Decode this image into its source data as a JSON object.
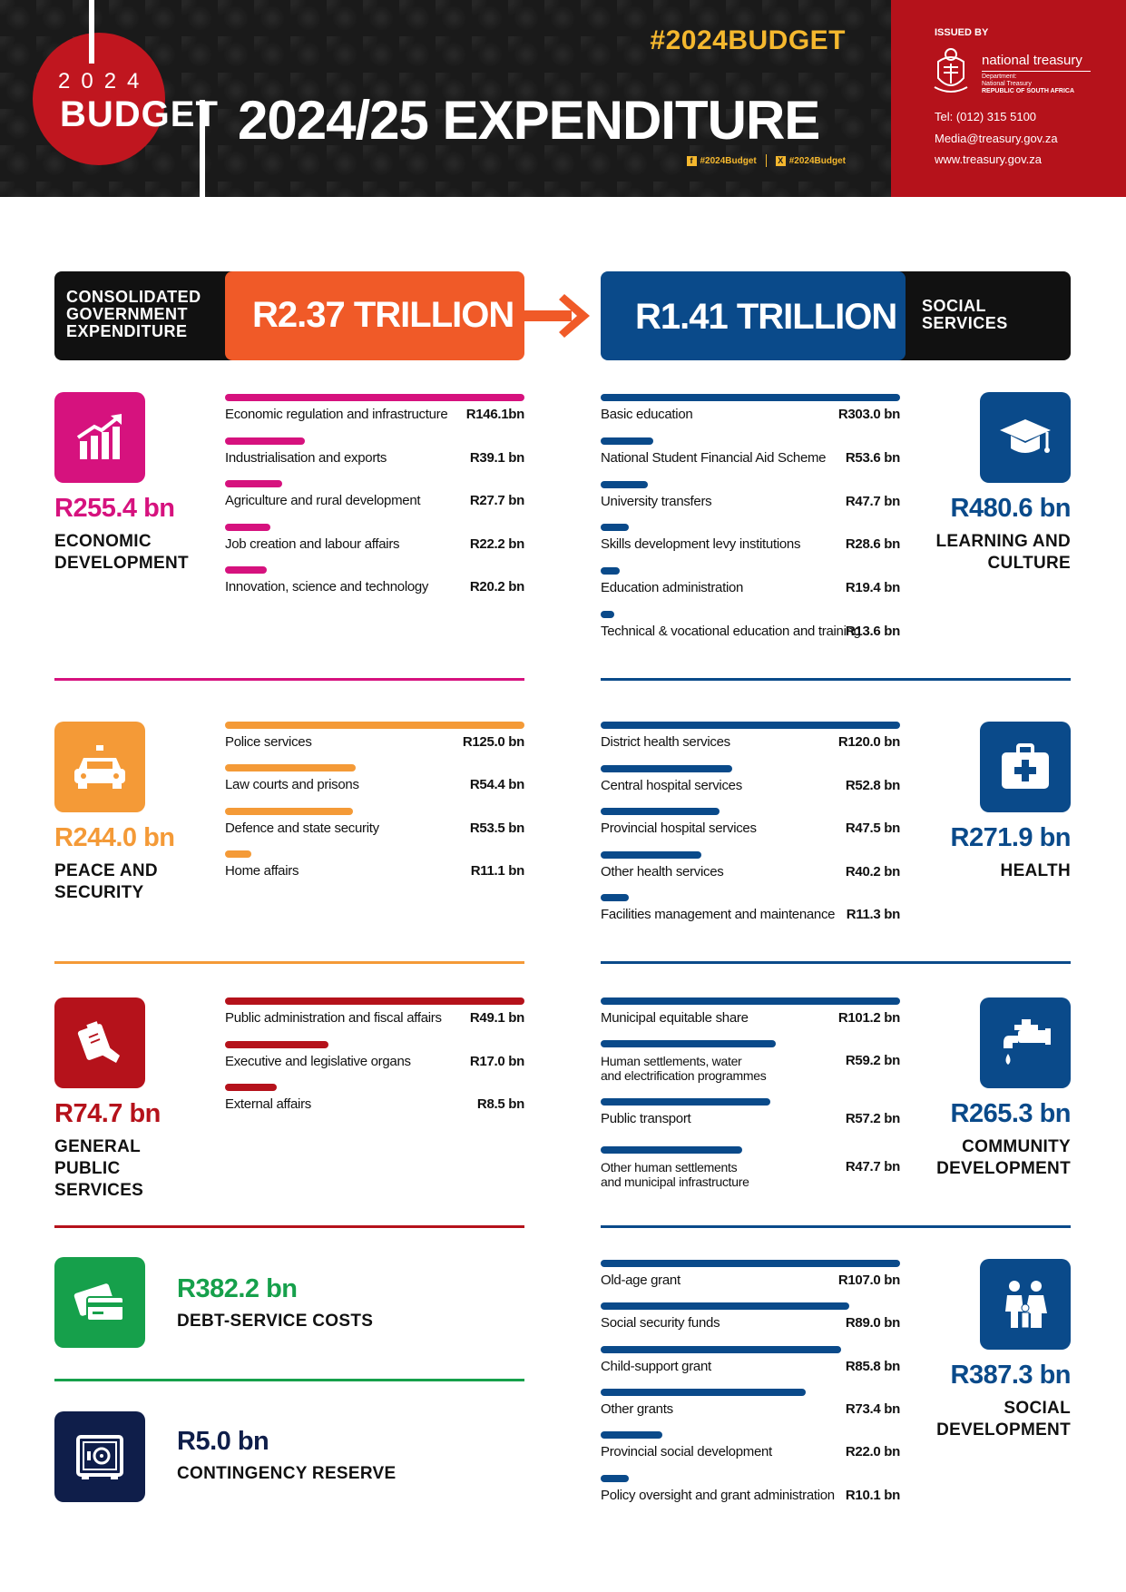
{
  "header": {
    "year": "2024",
    "budget_word": "BUDGET",
    "hashtag": "#2024BUDGET",
    "title": "2024/25 EXPENDITURE",
    "social_facebook": "#2024Budget",
    "social_x": "#2024Budget",
    "issued_by": "ISSUED BY",
    "issuer_name": "national treasury",
    "issuer_dept": "Department:",
    "issuer_sub": "National Treasury",
    "issuer_country": "REPUBLIC OF SOUTH AFRICA",
    "tel": "Tel: (012) 315 5100",
    "email": "Media@treasury.gov.za",
    "website": "www.treasury.gov.za"
  },
  "banners": {
    "left_label": "CONSOLIDATED GOVERNMENT EXPENDITURE",
    "left_amount": "R2.37 TRILLION",
    "right_amount": "R1.41 TRILLION",
    "right_label": "SOCIAL SERVICES"
  },
  "colors": {
    "magenta": "#d6127e",
    "orange": "#f49a37",
    "red": "#b5121b",
    "green": "#16a04b",
    "navy": "#0f1e4a",
    "blue": "#0a4a8a",
    "bright_orange": "#f05a28",
    "hashtag_yellow": "#f5b82e"
  },
  "sections": {
    "economic": {
      "total": "R255.4 bn",
      "title": "ECONOMIC DEVELOPMENT",
      "icon": "bar-chart-growth-icon",
      "items": [
        {
          "name": "Economic regulation and infrastructure",
          "value": "R146.1bn",
          "amount": 146.1
        },
        {
          "name": "Industrialisation and exports",
          "value": "R39.1 bn",
          "amount": 39.1
        },
        {
          "name": "Agriculture and rural development",
          "value": "R27.7 bn",
          "amount": 27.7
        },
        {
          "name": "Job creation and labour affairs",
          "value": "R22.2 bn",
          "amount": 22.2
        },
        {
          "name": "Innovation, science and technology",
          "value": "R20.2 bn",
          "amount": 20.2
        }
      ]
    },
    "learning": {
      "total": "R480.6 bn",
      "title": "LEARNING AND CULTURE",
      "icon": "graduation-cap-icon",
      "items": [
        {
          "name": "Basic education",
          "value": "R303.0 bn",
          "amount": 303.0
        },
        {
          "name": "National Student Financial Aid Scheme",
          "value": "R53.6 bn",
          "amount": 53.6
        },
        {
          "name": "University transfers",
          "value": "R47.7 bn",
          "amount": 47.7
        },
        {
          "name": "Skills development levy institutions",
          "value": "R28.6 bn",
          "amount": 28.6
        },
        {
          "name": "Education administration",
          "value": "R19.4 bn",
          "amount": 19.4
        },
        {
          "name": "Technical & vocational education and training",
          "value": "R13.6 bn",
          "amount": 13.6
        }
      ]
    },
    "peace": {
      "total": "R244.0 bn",
      "title": "PEACE AND SECURITY",
      "icon": "police-car-icon",
      "items": [
        {
          "name": "Police services",
          "value": "R125.0 bn",
          "amount": 125.0
        },
        {
          "name": "Law courts and prisons",
          "value": "R54.4 bn",
          "amount": 54.4
        },
        {
          "name": "Defence and state security",
          "value": "R53.5 bn",
          "amount": 53.5
        },
        {
          "name": "Home affairs",
          "value": "R11.1 bn",
          "amount": 11.1
        }
      ]
    },
    "health": {
      "total": "R271.9 bn",
      "title": "HEALTH",
      "icon": "first-aid-kit-icon",
      "items": [
        {
          "name": "District health services",
          "value": "R120.0 bn",
          "amount": 120.0
        },
        {
          "name": "Central hospital services",
          "value": "R52.8 bn",
          "amount": 52.8
        },
        {
          "name": "Provincial hospital services",
          "value": "R47.5 bn",
          "amount": 47.5
        },
        {
          "name": "Other health services",
          "value": "R40.2 bn",
          "amount": 40.2
        },
        {
          "name": "Facilities management and maintenance",
          "value": "R11.3 bn",
          "amount": 11.3
        }
      ]
    },
    "general": {
      "total": "R74.7 bn",
      "title": "GENERAL PUBLIC SERVICES",
      "icon": "clipboard-hand-icon",
      "items": [
        {
          "name": "Public administration and fiscal affairs",
          "value": "R49.1 bn",
          "amount": 49.1
        },
        {
          "name": "Executive and legislative organs",
          "value": "R17.0 bn",
          "amount": 17.0
        },
        {
          "name": "External affairs",
          "value": "R8.5 bn",
          "amount": 8.5
        }
      ]
    },
    "community": {
      "total": "R265.3 bn",
      "title": "COMMUNITY DEVELOPMENT",
      "icon": "water-tap-icon",
      "items": [
        {
          "name": "Municipal equitable share",
          "value": "R101.2 bn",
          "amount": 101.2
        },
        {
          "name": "Human settlements, water\nand electrification programmes",
          "value": "R59.2 bn",
          "amount": 59.2
        },
        {
          "name": "Public transport",
          "value": "R57.2 bn",
          "amount": 57.2
        },
        {
          "name": "Other human settlements\nand municipal infrastructure",
          "value": "R47.7 bn",
          "amount": 47.7
        }
      ]
    },
    "debt": {
      "total": "R382.2 bn",
      "title": "DEBT-SERVICE COSTS",
      "icon": "credit-cards-icon"
    },
    "contingency": {
      "total": "R5.0 bn",
      "title": "CONTINGENCY RESERVE",
      "icon": "safe-icon"
    },
    "social": {
      "total": "R387.3 bn",
      "title": "SOCIAL DEVELOPMENT",
      "icon": "family-icon",
      "items": [
        {
          "name": "Old-age grant",
          "value": "R107.0 bn",
          "amount": 107.0
        },
        {
          "name": "Social security funds",
          "value": "R89.0 bn",
          "amount": 89.0
        },
        {
          "name": "Child-support grant",
          "value": "R85.8 bn",
          "amount": 85.8
        },
        {
          "name": "Other grants",
          "value": "R73.4 bn",
          "amount": 73.4
        },
        {
          "name": "Provincial social development",
          "value": "R22.0 bn",
          "amount": 22.0
        },
        {
          "name": "Policy oversight and grant administration",
          "value": "R10.1 bn",
          "amount": 10.1
        }
      ]
    }
  }
}
